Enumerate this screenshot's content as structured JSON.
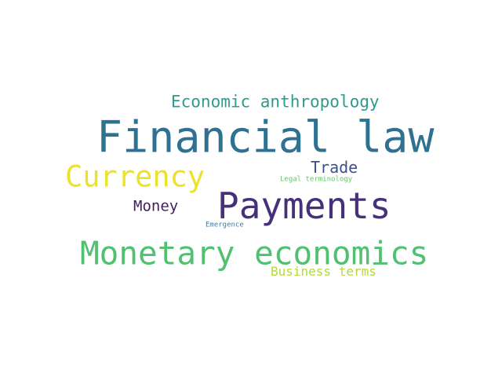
{
  "word_cloud": {
    "background": "#ffffff",
    "words": [
      {
        "text": "Financial law",
        "color": "#2e7190"
      },
      {
        "text": "Payments",
        "color": "#46307a"
      },
      {
        "text": "Monetary economics",
        "color": "#4fc170"
      },
      {
        "text": "Currency",
        "color": "#ece22a"
      },
      {
        "text": "Economic anthropology",
        "color": "#2e9b8c"
      },
      {
        "text": "Trade",
        "color": "#3b528b"
      },
      {
        "text": "Money",
        "color": "#441d5c"
      },
      {
        "text": "Business terms",
        "color": "#b5d93a"
      },
      {
        "text": "Legal terminology",
        "color": "#5cc863"
      },
      {
        "text": "Emergence",
        "color": "#3d7ba1"
      }
    ]
  }
}
